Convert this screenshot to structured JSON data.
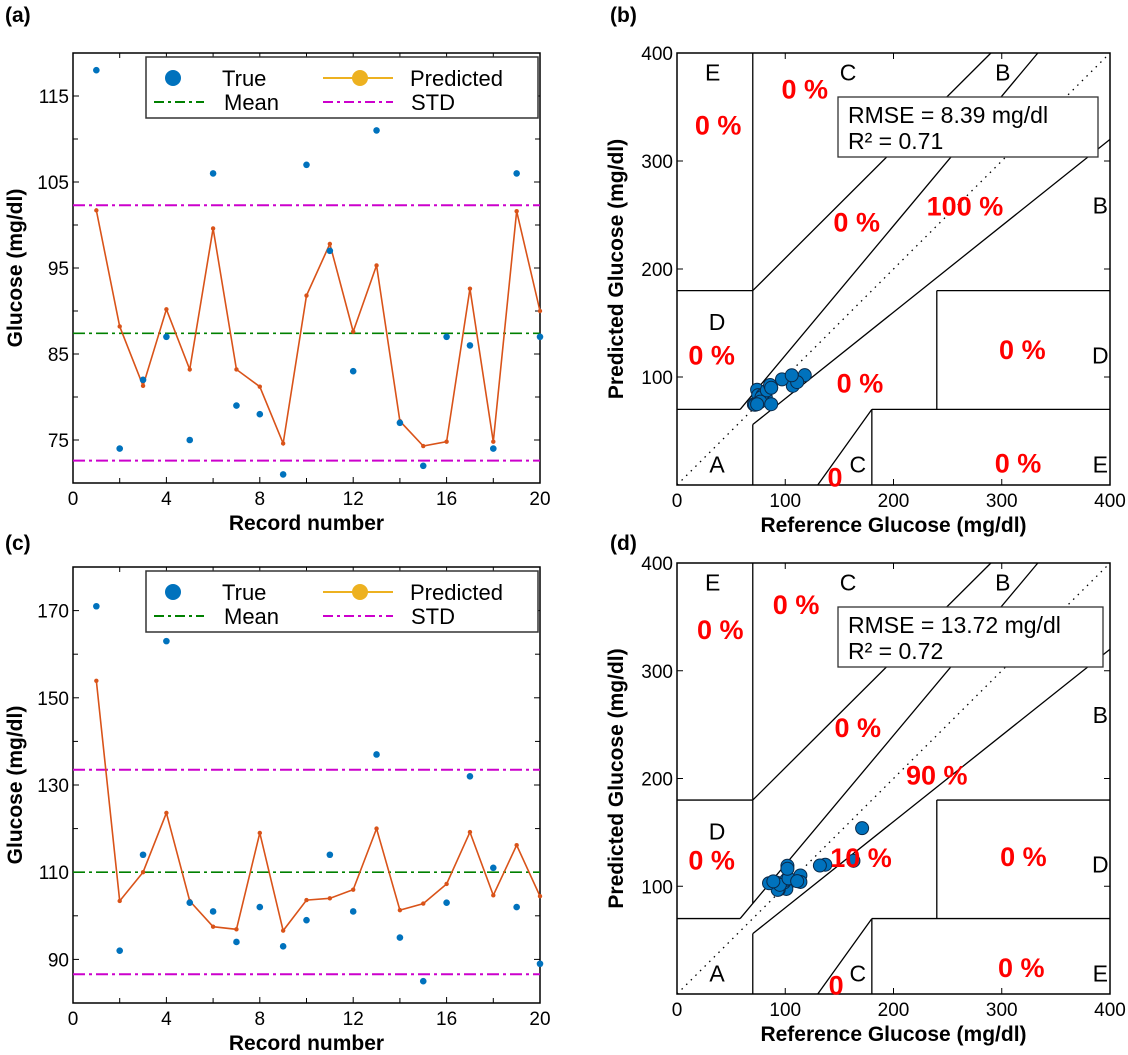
{
  "colors": {
    "true": "#0072BD",
    "predicted_line": "#D95319",
    "predicted_legend": "#EDB120",
    "mean": "#008000",
    "std": "#CC00CC",
    "percent_text": "#FF0000"
  },
  "chart_data": [
    {
      "panel_label": "(a)",
      "type": "line",
      "xlabel": "Record number",
      "ylabel": "Glucose (mg/dl)",
      "xlim": [
        0,
        20
      ],
      "ylim": [
        70,
        120
      ],
      "xticks": [
        0,
        4,
        8,
        12,
        16,
        20
      ],
      "yticks": [
        75,
        85,
        95,
        105,
        115
      ],
      "legend": {
        "position": "top-right",
        "entries": [
          "True",
          "Predicted",
          "Mean",
          "STD"
        ]
      },
      "x": [
        1,
        2,
        3,
        4,
        5,
        6,
        7,
        8,
        9,
        10,
        11,
        12,
        13,
        14,
        15,
        16,
        17,
        18,
        19,
        20
      ],
      "series": [
        {
          "name": "True",
          "style": "scatter",
          "values": [
            118,
            74,
            82,
            87,
            75,
            106,
            79,
            78,
            71,
            107,
            97,
            83,
            111,
            77,
            72,
            87,
            86,
            74,
            106,
            87
          ]
        },
        {
          "name": "Predicted",
          "style": "line",
          "values": [
            101.7,
            88.2,
            81.3,
            90.2,
            83.2,
            99.6,
            83.2,
            81.2,
            74.6,
            91.8,
            97.8,
            87.6,
            95.3,
            77.2,
            74.3,
            74.8,
            92.6,
            74.8,
            101.6,
            90.0
          ]
        }
      ],
      "mean": 87.4,
      "std_band": [
        72.6,
        102.3
      ]
    },
    {
      "panel_label": "(b)",
      "type": "scatter",
      "xlabel": "Reference Glucose (mg/dl)",
      "ylabel": "Predicted Glucose (mg/dl)",
      "xlim": [
        0,
        400
      ],
      "ylim": [
        0,
        400
      ],
      "xticks": [
        0,
        100,
        200,
        300,
        400
      ],
      "yticks": [
        100,
        200,
        300,
        400
      ],
      "zone_labels": [
        "E",
        "C",
        "B",
        "B",
        "D",
        "D",
        "A",
        "C",
        "E"
      ],
      "zone_percents": [
        "0 %",
        "0 %",
        "0 %",
        "100 %",
        "0 %",
        "0 %",
        "0 %",
        "0",
        "0 %"
      ],
      "stats": {
        "rmse": "RMSE = 8.39 mg/dl",
        "r2": "R² = 0.71"
      },
      "points": [
        [
          118,
          101.7
        ],
        [
          74,
          88.2
        ],
        [
          82,
          81.3
        ],
        [
          87,
          90.2
        ],
        [
          75,
          83.2
        ],
        [
          106,
          99.6
        ],
        [
          79,
          83.2
        ],
        [
          78,
          81.2
        ],
        [
          71,
          74.6
        ],
        [
          107,
          91.8
        ],
        [
          97,
          97.8
        ],
        [
          83,
          87.6
        ],
        [
          111,
          95.3
        ],
        [
          77,
          77.2
        ],
        [
          72,
          74.3
        ],
        [
          87,
          74.8
        ],
        [
          86,
          92.6
        ],
        [
          74,
          74.8
        ],
        [
          106,
          101.6
        ],
        [
          87,
          90.0
        ]
      ]
    },
    {
      "panel_label": "(c)",
      "type": "line",
      "xlabel": "Record number",
      "ylabel": "Glucose (mg/dl)",
      "xlim": [
        0,
        20
      ],
      "ylim": [
        80,
        180
      ],
      "xticks": [
        0,
        4,
        8,
        12,
        16,
        20
      ],
      "yticks": [
        90,
        110,
        130,
        150,
        170
      ],
      "legend": {
        "position": "top-right",
        "entries": [
          "True",
          "Predicted",
          "Mean",
          "STD"
        ]
      },
      "x": [
        1,
        2,
        3,
        4,
        5,
        6,
        7,
        8,
        9,
        10,
        11,
        12,
        13,
        14,
        15,
        16,
        17,
        18,
        19,
        20
      ],
      "series": [
        {
          "name": "True",
          "style": "scatter",
          "values": [
            171,
            92,
            114,
            163,
            103,
            101,
            94,
            102,
            93,
            99,
            114,
            101,
            137,
            95,
            85,
            103,
            132,
            111,
            102,
            89
          ]
        },
        {
          "name": "Predicted",
          "style": "line",
          "values": [
            153.9,
            103.4,
            110,
            123.6,
            103.4,
            97.5,
            96.9,
            119,
            96.6,
            103.6,
            104,
            106,
            120,
            101.3,
            102.8,
            107.3,
            119.2,
            104.7,
            116.2,
            104.5
          ]
        }
      ],
      "mean": 110,
      "std_band": [
        86.6,
        133.5
      ]
    },
    {
      "panel_label": "(d)",
      "type": "scatter",
      "xlabel": "Reference Glucose (mg/dl)",
      "ylabel": "Predicted Glucose (mg/dl)",
      "xlim": [
        0,
        400
      ],
      "ylim": [
        0,
        400
      ],
      "xticks": [
        0,
        100,
        200,
        300,
        400
      ],
      "yticks": [
        100,
        200,
        300,
        400
      ],
      "zone_labels": [
        "E",
        "C",
        "B",
        "B",
        "D",
        "D",
        "A",
        "C",
        "E"
      ],
      "zone_percents": [
        "0 %",
        "0 %",
        "0 %",
        "90 %",
        "0 %",
        "0 %",
        "10 %",
        "0",
        "0 %"
      ],
      "stats": {
        "rmse": "RMSE = 13.72 mg/dl",
        "r2": "R² = 0.72"
      },
      "points": [
        [
          171,
          153.9
        ],
        [
          92,
          103.4
        ],
        [
          114,
          110
        ],
        [
          163,
          123.6
        ],
        [
          103,
          103.4
        ],
        [
          101,
          97.5
        ],
        [
          94,
          96.9
        ],
        [
          102,
          119
        ],
        [
          93,
          96.6
        ],
        [
          99,
          103.6
        ],
        [
          114,
          104
        ],
        [
          101,
          106
        ],
        [
          137,
          120
        ],
        [
          95,
          101.3
        ],
        [
          85,
          102.8
        ],
        [
          103,
          107.3
        ],
        [
          132,
          119.2
        ],
        [
          111,
          104.7
        ],
        [
          102,
          116.2
        ],
        [
          89,
          104.5
        ]
      ]
    }
  ]
}
